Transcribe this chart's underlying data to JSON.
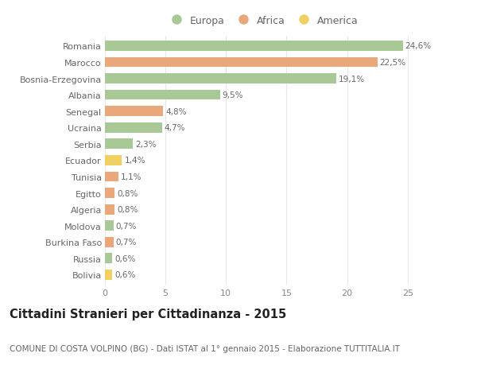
{
  "countries": [
    "Romania",
    "Marocco",
    "Bosnia-Erzegovina",
    "Albania",
    "Senegal",
    "Ucraina",
    "Serbia",
    "Ecuador",
    "Tunisia",
    "Egitto",
    "Algeria",
    "Moldova",
    "Burkina Faso",
    "Russia",
    "Bolivia"
  ],
  "values": [
    24.6,
    22.5,
    19.1,
    9.5,
    4.8,
    4.7,
    2.3,
    1.4,
    1.1,
    0.8,
    0.8,
    0.7,
    0.7,
    0.6,
    0.6
  ],
  "labels": [
    "24,6%",
    "22,5%",
    "19,1%",
    "9,5%",
    "4,8%",
    "4,7%",
    "2,3%",
    "1,4%",
    "1,1%",
    "0,8%",
    "0,8%",
    "0,7%",
    "0,7%",
    "0,6%",
    "0,6%"
  ],
  "continents": [
    "Europa",
    "Africa",
    "Europa",
    "Europa",
    "Africa",
    "Europa",
    "Europa",
    "America",
    "Africa",
    "Africa",
    "Africa",
    "Europa",
    "Africa",
    "Europa",
    "America"
  ],
  "colors": {
    "Europa": "#a8c896",
    "Africa": "#e8a87c",
    "America": "#f0d060"
  },
  "legend_order": [
    "Europa",
    "Africa",
    "America"
  ],
  "title": "Cittadini Stranieri per Cittadinanza - 2015",
  "subtitle": "COMUNE DI COSTA VOLPINO (BG) - Dati ISTAT al 1° gennaio 2015 - Elaborazione TUTTITALIA.IT",
  "xlim": [
    0,
    26
  ],
  "xticks": [
    0,
    5,
    10,
    15,
    20,
    25
  ],
  "background_color": "#ffffff",
  "grid_color": "#e8e8e8",
  "bar_height": 0.62,
  "title_fontsize": 10.5,
  "subtitle_fontsize": 7.5,
  "label_fontsize": 7.5,
  "tick_fontsize": 8,
  "legend_fontsize": 9,
  "text_color": "#666666",
  "title_color": "#222222"
}
